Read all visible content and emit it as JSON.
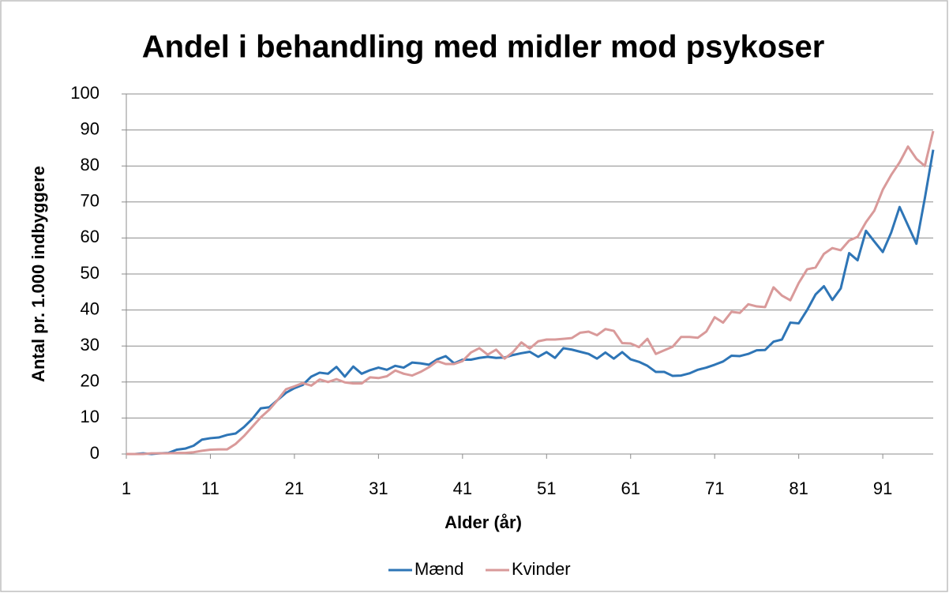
{
  "chart_data": {
    "type": "line",
    "title": "Andel i behandling med midler mod psykoser",
    "x_label": "Alder (år)",
    "y_label": "Antal pr. 1.000 indbyggere",
    "x": [
      1,
      2,
      3,
      4,
      5,
      6,
      7,
      8,
      9,
      10,
      11,
      12,
      13,
      14,
      15,
      16,
      17,
      18,
      19,
      20,
      21,
      22,
      23,
      24,
      25,
      26,
      27,
      28,
      29,
      30,
      31,
      32,
      33,
      34,
      35,
      36,
      37,
      38,
      39,
      40,
      41,
      42,
      43,
      44,
      45,
      46,
      47,
      48,
      49,
      50,
      51,
      52,
      53,
      54,
      55,
      56,
      57,
      58,
      59,
      60,
      61,
      62,
      63,
      64,
      65,
      66,
      67,
      68,
      69,
      70,
      71,
      72,
      73,
      74,
      75,
      76,
      77,
      78,
      79,
      80,
      81,
      82,
      83,
      84,
      85,
      86,
      87,
      88,
      89,
      90,
      91,
      92,
      93,
      94,
      95,
      96,
      97
    ],
    "series": [
      {
        "name": "Mænd",
        "color": "#2e75b6",
        "values": [
          0,
          0,
          0.2,
          0,
          0.2,
          0.3,
          1.2,
          1.5,
          2.3,
          4,
          4.4,
          4.6,
          5.3,
          5.7,
          7.5,
          9.8,
          12.7,
          13,
          15,
          17,
          18.3,
          19.2,
          21.5,
          22.6,
          22.3,
          24.2,
          21.5,
          24.3,
          22.3,
          23.3,
          24,
          23.4,
          24.5,
          24,
          25.4,
          25.2,
          24.8,
          26.3,
          27.2,
          25.2,
          26.2,
          26.2,
          26.7,
          27,
          26.7,
          26.8,
          27.5,
          28,
          28.4,
          27,
          28.3,
          26.7,
          29.4,
          29,
          28.4,
          27.8,
          26.5,
          28.2,
          26.5,
          28.3,
          26.3,
          25.6,
          24.5,
          22.8,
          22.8,
          21.7,
          21.8,
          22.4,
          23.4,
          24,
          24.8,
          25.7,
          27.3,
          27.2,
          27.8,
          28.8,
          28.9,
          31.2,
          31.8,
          36.5,
          36.3,
          40,
          44.3,
          46.6,
          42.8,
          46,
          55.8,
          53.8,
          62,
          59,
          56.1,
          61.5,
          68.6,
          63.5,
          58.4,
          71,
          84.5
        ]
      },
      {
        "name": "Kvinder",
        "color": "#d99a9a",
        "values": [
          0,
          0,
          0,
          0.2,
          0.2,
          0.2,
          0.3,
          0.3,
          0.5,
          0.9,
          1.2,
          1.3,
          1.3,
          2.8,
          5,
          7.6,
          10.2,
          12.3,
          15,
          18,
          18.8,
          19.7,
          19,
          20.7,
          20,
          20.8,
          19.9,
          19.6,
          19.6,
          21.3,
          21.1,
          21.6,
          23.2,
          22.3,
          21.8,
          22.8,
          24.1,
          25.8,
          25,
          25,
          25.8,
          28.2,
          29.4,
          27.6,
          29,
          26.5,
          28.3,
          31,
          29.3,
          31.3,
          31.8,
          31.8,
          32,
          32.2,
          33.7,
          34,
          33,
          34.7,
          34.2,
          30.8,
          30.7,
          29.7,
          32,
          27.8,
          28.8,
          29.8,
          32.5,
          32.5,
          32.3,
          34,
          38,
          36.5,
          39.5,
          39.2,
          41.6,
          41,
          40.8,
          46.3,
          44,
          42.7,
          47.5,
          51.3,
          51.8,
          55.6,
          57.2,
          56.6,
          59.3,
          60.3,
          64.4,
          67.6,
          73.4,
          77.5,
          81,
          85.4,
          82,
          80,
          89.7
        ]
      }
    ],
    "xlim": [
      1,
      97
    ],
    "xticks": [
      1,
      11,
      21,
      31,
      41,
      51,
      61,
      71,
      81,
      91
    ],
    "ylim": [
      0,
      100
    ],
    "yticks": [
      0,
      10,
      20,
      30,
      40,
      50,
      60,
      70,
      80,
      90,
      100
    ],
    "grid": true,
    "legend": "bottom"
  }
}
